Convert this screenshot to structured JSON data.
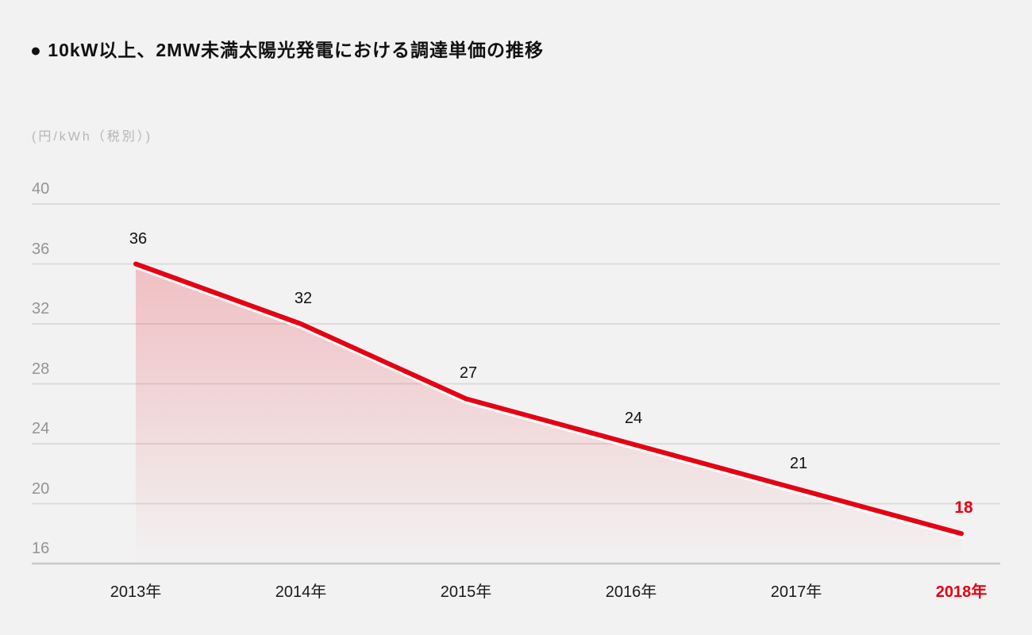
{
  "title": "● 10kW以上、2MW未満太陽光発電における調達単価の推移",
  "unit_label": "(円/kWh（税別）)",
  "colors": {
    "accent_red": "#e60012",
    "background": "#f2f2f2",
    "gridline": "#dcdcdc",
    "baseline": "#c9c9c9",
    "tick_text": "#949494",
    "axis_text": "#1a1a1a",
    "area_fill_top": "rgba(230,0,18,0.21)",
    "area_fill_bottom": "rgba(230,0,18,0)"
  },
  "chart_data": {
    "type": "area",
    "title": "10kW以上、2MW未満太陽光発電における調達単価の推移",
    "categories": [
      "2013年",
      "2014年",
      "2015年",
      "2016年",
      "2017年",
      "2018年"
    ],
    "values": [
      36,
      32,
      27,
      24,
      21,
      18
    ],
    "data_labels": [
      "36",
      "32",
      "27",
      "24",
      "21",
      "18"
    ],
    "ylabel": "(円/kWh（税別）)",
    "yticks": [
      40,
      36,
      32,
      28,
      24,
      20,
      16
    ],
    "ylim": [
      16,
      40
    ],
    "grid": "horizontal-only",
    "legend": "none",
    "highlight_last_point": true
  }
}
